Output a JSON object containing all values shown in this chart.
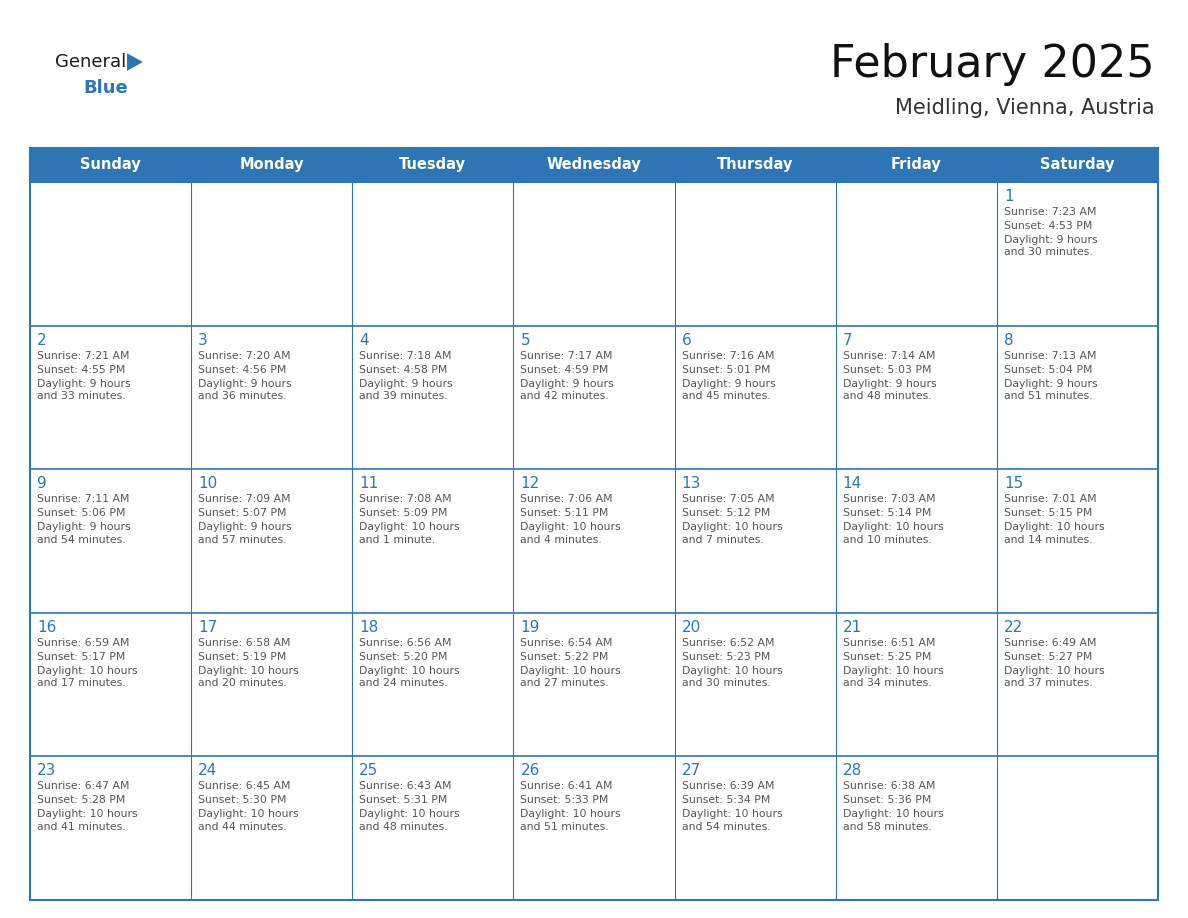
{
  "title": "February 2025",
  "subtitle": "Meidling, Vienna, Austria",
  "days_of_week": [
    "Sunday",
    "Monday",
    "Tuesday",
    "Wednesday",
    "Thursday",
    "Friday",
    "Saturday"
  ],
  "header_bg": "#2e75b6",
  "header_text": "#ffffff",
  "cell_border": "#2e75b6",
  "cell_bg": "#ffffff",
  "text_color": "#555555",
  "day_number_color": "#2e75b6",
  "logo_general_color": "#1a1a1a",
  "logo_blue_color": "#2e75b6",
  "calendar_data": {
    "1": {
      "sunrise": "7:23 AM",
      "sunset": "4:53 PM",
      "daylight": "9 hours\nand 30 minutes."
    },
    "2": {
      "sunrise": "7:21 AM",
      "sunset": "4:55 PM",
      "daylight": "9 hours\nand 33 minutes."
    },
    "3": {
      "sunrise": "7:20 AM",
      "sunset": "4:56 PM",
      "daylight": "9 hours\nand 36 minutes."
    },
    "4": {
      "sunrise": "7:18 AM",
      "sunset": "4:58 PM",
      "daylight": "9 hours\nand 39 minutes."
    },
    "5": {
      "sunrise": "7:17 AM",
      "sunset": "4:59 PM",
      "daylight": "9 hours\nand 42 minutes."
    },
    "6": {
      "sunrise": "7:16 AM",
      "sunset": "5:01 PM",
      "daylight": "9 hours\nand 45 minutes."
    },
    "7": {
      "sunrise": "7:14 AM",
      "sunset": "5:03 PM",
      "daylight": "9 hours\nand 48 minutes."
    },
    "8": {
      "sunrise": "7:13 AM",
      "sunset": "5:04 PM",
      "daylight": "9 hours\nand 51 minutes."
    },
    "9": {
      "sunrise": "7:11 AM",
      "sunset": "5:06 PM",
      "daylight": "9 hours\nand 54 minutes."
    },
    "10": {
      "sunrise": "7:09 AM",
      "sunset": "5:07 PM",
      "daylight": "9 hours\nand 57 minutes."
    },
    "11": {
      "sunrise": "7:08 AM",
      "sunset": "5:09 PM",
      "daylight": "10 hours\nand 1 minute."
    },
    "12": {
      "sunrise": "7:06 AM",
      "sunset": "5:11 PM",
      "daylight": "10 hours\nand 4 minutes."
    },
    "13": {
      "sunrise": "7:05 AM",
      "sunset": "5:12 PM",
      "daylight": "10 hours\nand 7 minutes."
    },
    "14": {
      "sunrise": "7:03 AM",
      "sunset": "5:14 PM",
      "daylight": "10 hours\nand 10 minutes."
    },
    "15": {
      "sunrise": "7:01 AM",
      "sunset": "5:15 PM",
      "daylight": "10 hours\nand 14 minutes."
    },
    "16": {
      "sunrise": "6:59 AM",
      "sunset": "5:17 PM",
      "daylight": "10 hours\nand 17 minutes."
    },
    "17": {
      "sunrise": "6:58 AM",
      "sunset": "5:19 PM",
      "daylight": "10 hours\nand 20 minutes."
    },
    "18": {
      "sunrise": "6:56 AM",
      "sunset": "5:20 PM",
      "daylight": "10 hours\nand 24 minutes."
    },
    "19": {
      "sunrise": "6:54 AM",
      "sunset": "5:22 PM",
      "daylight": "10 hours\nand 27 minutes."
    },
    "20": {
      "sunrise": "6:52 AM",
      "sunset": "5:23 PM",
      "daylight": "10 hours\nand 30 minutes."
    },
    "21": {
      "sunrise": "6:51 AM",
      "sunset": "5:25 PM",
      "daylight": "10 hours\nand 34 minutes."
    },
    "22": {
      "sunrise": "6:49 AM",
      "sunset": "5:27 PM",
      "daylight": "10 hours\nand 37 minutes."
    },
    "23": {
      "sunrise": "6:47 AM",
      "sunset": "5:28 PM",
      "daylight": "10 hours\nand 41 minutes."
    },
    "24": {
      "sunrise": "6:45 AM",
      "sunset": "5:30 PM",
      "daylight": "10 hours\nand 44 minutes."
    },
    "25": {
      "sunrise": "6:43 AM",
      "sunset": "5:31 PM",
      "daylight": "10 hours\nand 48 minutes."
    },
    "26": {
      "sunrise": "6:41 AM",
      "sunset": "5:33 PM",
      "daylight": "10 hours\nand 51 minutes."
    },
    "27": {
      "sunrise": "6:39 AM",
      "sunset": "5:34 PM",
      "daylight": "10 hours\nand 54 minutes."
    },
    "28": {
      "sunrise": "6:38 AM",
      "sunset": "5:36 PM",
      "daylight": "10 hours\nand 58 minutes."
    }
  },
  "weeks": [
    [
      null,
      null,
      null,
      null,
      null,
      null,
      1
    ],
    [
      2,
      3,
      4,
      5,
      6,
      7,
      8
    ],
    [
      9,
      10,
      11,
      12,
      13,
      14,
      15
    ],
    [
      16,
      17,
      18,
      19,
      20,
      21,
      22
    ],
    [
      23,
      24,
      25,
      26,
      27,
      28,
      null
    ]
  ]
}
